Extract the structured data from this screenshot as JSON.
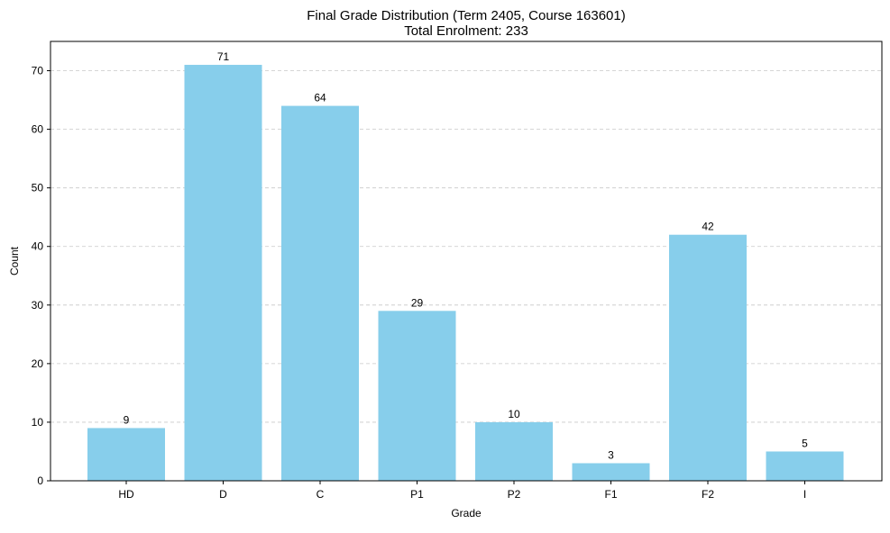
{
  "chart_data": {
    "type": "bar",
    "title": "Final Grade Distribution (Term 2405, Course 163601)",
    "subtitle": "Total Enrolment: 233",
    "xlabel": "Grade",
    "ylabel": "Count",
    "categories": [
      "HD",
      "D",
      "C",
      "P1",
      "P2",
      "F1",
      "F2",
      "I"
    ],
    "values": [
      9,
      71,
      64,
      29,
      10,
      3,
      42,
      5
    ],
    "ylim": [
      0,
      75
    ],
    "yticks": [
      0,
      10,
      20,
      30,
      40,
      50,
      60,
      70
    ],
    "grid": {
      "y": true,
      "x": false,
      "style": "dashed"
    },
    "bar_color": "#87CEEB",
    "grid_color": "#c8c8c8",
    "data_labels": true,
    "legend": "none"
  }
}
